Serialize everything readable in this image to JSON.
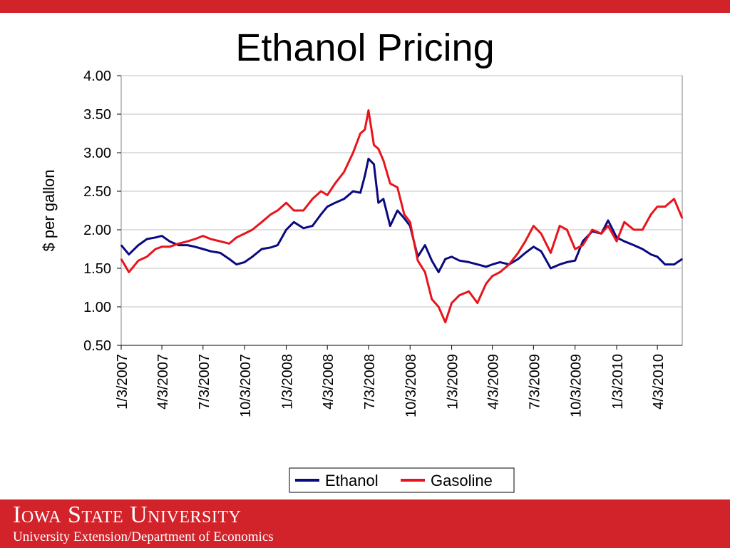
{
  "slide": {
    "title": "Ethanol Pricing",
    "accent_color": "#d2232a",
    "footer": {
      "university": "Iowa State University",
      "department": "University Extension/Department of Economics"
    }
  },
  "chart_data": {
    "type": "line",
    "title": "",
    "xlabel": "",
    "ylabel": "$ per gallon",
    "x_range": [
      "1/3/2007",
      "5/28/2010"
    ],
    "ylim": [
      0.5,
      4.0
    ],
    "yticks": [
      "0.50",
      "1.00",
      "1.50",
      "2.00",
      "2.50",
      "3.00",
      "3.50",
      "4.00"
    ],
    "xticks": [
      "1/3/2007",
      "4/3/2007",
      "7/3/2007",
      "10/3/2007",
      "1/3/2008",
      "4/3/2008",
      "7/3/2008",
      "10/3/2008",
      "1/3/2009",
      "4/3/2009",
      "7/3/2009",
      "10/3/2009",
      "1/3/2010",
      "4/3/2010"
    ],
    "grid": "horizontal",
    "legend_position": "bottom",
    "series": [
      {
        "name": "Ethanol",
        "color": "#0a0a80",
        "x": [
          "1/3/2007",
          "1/20/2007",
          "2/10/2007",
          "3/1/2007",
          "3/20/2007",
          "4/3/2007",
          "4/20/2007",
          "5/10/2007",
          "5/30/2007",
          "6/15/2007",
          "7/3/2007",
          "7/20/2007",
          "8/10/2007",
          "8/30/2007",
          "9/15/2007",
          "10/3/2007",
          "10/20/2007",
          "11/10/2007",
          "11/30/2007",
          "12/15/2007",
          "1/3/2008",
          "1/20/2008",
          "2/10/2008",
          "3/1/2008",
          "3/20/2008",
          "4/3/2008",
          "4/20/2008",
          "5/10/2008",
          "5/30/2008",
          "6/15/2008",
          "6/25/2008",
          "7/3/2008",
          "7/15/2008",
          "7/25/2008",
          "8/5/2008",
          "8/20/2008",
          "9/5/2008",
          "9/20/2008",
          "10/3/2008",
          "10/20/2008",
          "11/5/2008",
          "11/20/2008",
          "12/5/2008",
          "12/20/2008",
          "1/3/2009",
          "1/20/2009",
          "2/10/2009",
          "3/1/2009",
          "3/20/2009",
          "4/3/2009",
          "4/20/2009",
          "5/10/2009",
          "5/30/2009",
          "6/15/2009",
          "7/3/2009",
          "7/20/2009",
          "8/10/2009",
          "8/30/2009",
          "9/15/2009",
          "10/3/2009",
          "10/20/2009",
          "11/10/2009",
          "11/30/2009",
          "12/15/2009",
          "1/3/2010",
          "1/20/2010",
          "2/10/2010",
          "3/1/2010",
          "3/20/2010",
          "4/3/2010",
          "4/20/2010",
          "5/10/2010",
          "5/28/2010"
        ],
        "values": [
          1.8,
          1.68,
          1.8,
          1.88,
          1.9,
          1.92,
          1.85,
          1.8,
          1.8,
          1.78,
          1.75,
          1.72,
          1.7,
          1.62,
          1.55,
          1.58,
          1.65,
          1.75,
          1.77,
          1.8,
          2.0,
          2.1,
          2.02,
          2.05,
          2.2,
          2.3,
          2.35,
          2.4,
          2.5,
          2.48,
          2.7,
          2.92,
          2.85,
          2.35,
          2.4,
          2.05,
          2.25,
          2.15,
          2.05,
          1.65,
          1.8,
          1.6,
          1.45,
          1.62,
          1.65,
          1.6,
          1.58,
          1.55,
          1.52,
          1.55,
          1.58,
          1.55,
          1.62,
          1.7,
          1.78,
          1.72,
          1.5,
          1.55,
          1.58,
          1.6,
          1.85,
          1.98,
          1.95,
          2.12,
          1.9,
          1.85,
          1.8,
          1.75,
          1.68,
          1.65,
          1.55,
          1.55,
          1.62
        ]
      },
      {
        "name": "Gasoline",
        "color": "#e8141c",
        "x": [
          "1/3/2007",
          "1/20/2007",
          "2/10/2007",
          "3/1/2007",
          "3/20/2007",
          "4/3/2007",
          "4/20/2007",
          "5/10/2007",
          "5/30/2007",
          "6/15/2007",
          "7/3/2007",
          "7/20/2007",
          "8/10/2007",
          "8/30/2007",
          "9/15/2007",
          "10/3/2007",
          "10/20/2007",
          "11/10/2007",
          "11/30/2007",
          "12/15/2007",
          "1/3/2008",
          "1/20/2008",
          "2/10/2008",
          "3/1/2008",
          "3/20/2008",
          "4/3/2008",
          "4/20/2008",
          "5/10/2008",
          "5/30/2008",
          "6/15/2008",
          "6/25/2008",
          "7/3/2008",
          "7/15/2008",
          "7/25/2008",
          "8/5/2008",
          "8/20/2008",
          "9/5/2008",
          "9/20/2008",
          "10/3/2008",
          "10/20/2008",
          "11/5/2008",
          "11/20/2008",
          "12/5/2008",
          "12/20/2008",
          "1/3/2009",
          "1/20/2009",
          "2/10/2009",
          "3/1/2009",
          "3/20/2009",
          "4/3/2009",
          "4/20/2009",
          "5/10/2009",
          "5/30/2009",
          "6/15/2009",
          "7/3/2009",
          "7/20/2009",
          "8/10/2009",
          "8/30/2009",
          "9/15/2009",
          "10/3/2009",
          "10/20/2009",
          "11/10/2009",
          "11/30/2009",
          "12/15/2009",
          "1/3/2010",
          "1/20/2010",
          "2/10/2010",
          "3/1/2010",
          "3/20/2010",
          "4/3/2010",
          "4/20/2010",
          "5/10/2010",
          "5/28/2010"
        ],
        "values": [
          1.62,
          1.45,
          1.6,
          1.65,
          1.75,
          1.78,
          1.78,
          1.82,
          1.85,
          1.88,
          1.92,
          1.88,
          1.85,
          1.82,
          1.9,
          1.95,
          2.0,
          2.1,
          2.2,
          2.25,
          2.35,
          2.25,
          2.25,
          2.4,
          2.5,
          2.45,
          2.6,
          2.75,
          3.0,
          3.25,
          3.3,
          3.55,
          3.1,
          3.05,
          2.9,
          2.6,
          2.55,
          2.2,
          2.1,
          1.6,
          1.45,
          1.1,
          1.0,
          0.8,
          1.05,
          1.15,
          1.2,
          1.05,
          1.3,
          1.4,
          1.45,
          1.55,
          1.7,
          1.85,
          2.05,
          1.95,
          1.7,
          2.05,
          2.0,
          1.75,
          1.8,
          2.0,
          1.95,
          2.05,
          1.85,
          2.1,
          2.0,
          2.0,
          2.2,
          2.3,
          2.3,
          2.4,
          2.15
        ]
      }
    ]
  }
}
